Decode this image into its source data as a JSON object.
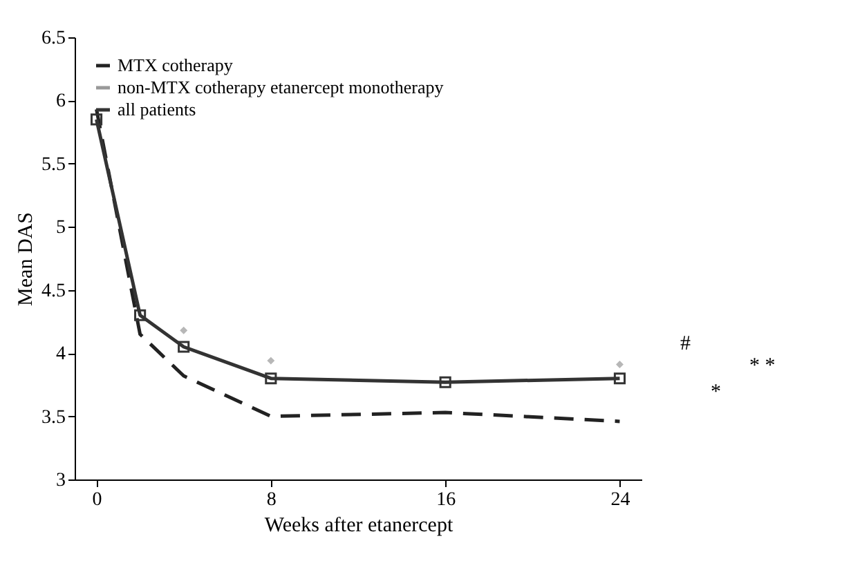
{
  "chart_data": {
    "type": "line",
    "xlabel": "Weeks after etanercept",
    "ylabel": "Mean DAS",
    "xlim": [
      -1,
      25
    ],
    "ylim": [
      3,
      6.5
    ],
    "xticks": [
      0,
      8,
      16,
      24
    ],
    "yticks": [
      3,
      3.5,
      4,
      4.5,
      5,
      5.5,
      6,
      6.5
    ],
    "legend": "top left",
    "grid": false,
    "line_style": "solid",
    "annotations": [
      "#",
      "*",
      "* *"
    ],
    "series": [
      {
        "name": "MTX cotherapy",
        "color": "#222222",
        "line_style": "dashed",
        "x": [
          0,
          2,
          4,
          8,
          16,
          24
        ],
        "values": [
          5.93,
          4.15,
          3.82,
          3.5,
          3.53,
          3.46
        ]
      },
      {
        "name": "non-MTX cotherapy etanercept monotherapy",
        "type": "scatter",
        "marker": "diamond",
        "color": "#999999",
        "x": [
          4,
          8,
          24
        ],
        "values": [
          4.18,
          3.94,
          3.91
        ]
      },
      {
        "name": "all patients",
        "marker": "square",
        "color": "#333333",
        "x": [
          0,
          2,
          4,
          8,
          16,
          24
        ],
        "values": [
          5.85,
          4.3,
          4.05,
          3.8,
          3.77,
          3.8
        ]
      }
    ]
  }
}
